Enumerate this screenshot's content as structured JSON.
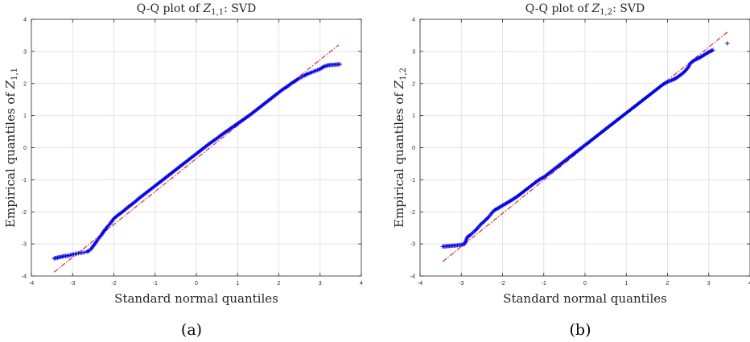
{
  "chart_data": [
    {
      "type": "scatter",
      "title": "Q-Q plot of Z1,1: SVD",
      "title_parts": {
        "prefix": "Q-Q plot of ",
        "var": "Z",
        "sub": "1,1",
        "suffix": ": SVD"
      },
      "xlabel": "Standard normal quantiles",
      "ylabel": "Empirical quantiles of Z1,1",
      "ylabel_parts": {
        "prefix": "Empirical quantiles of ",
        "var": "Z",
        "sub": "1,1"
      },
      "caption": "(a)",
      "xlim": [
        -4,
        4
      ],
      "ylim": [
        -4,
        4
      ],
      "xticks": [
        "-4",
        "-3",
        "-2",
        "-1",
        "0",
        "1",
        "2",
        "3",
        "4"
      ],
      "yticks": [
        "-4",
        "-3",
        "-2",
        "-1",
        "0",
        "1",
        "2",
        "3",
        "4"
      ],
      "grid": true,
      "marker": "+",
      "marker_color": "#0000ff",
      "reference_line": {
        "style": "dash-dot",
        "color": "#ff0000",
        "x": [
          -3.45,
          3.45
        ],
        "y": [
          -3.88,
          3.2
        ]
      },
      "points": [
        [
          -3.45,
          -3.45
        ],
        [
          -3.2,
          -3.38
        ],
        [
          -3.08,
          -3.36
        ],
        [
          -2.98,
          -3.32
        ],
        [
          -2.9,
          -3.3
        ],
        [
          -2.82,
          -3.28
        ],
        [
          -2.75,
          -3.27
        ],
        [
          -2.7,
          -3.26
        ],
        [
          -2.65,
          -3.24
        ],
        [
          -2.6,
          -3.21
        ],
        [
          -2.56,
          -3.17
        ],
        [
          -2.52,
          -3.1
        ],
        [
          -2.48,
          -3.03
        ],
        [
          -2.44,
          -2.96
        ],
        [
          -2.4,
          -2.88
        ],
        [
          -2.35,
          -2.8
        ],
        [
          -2.3,
          -2.72
        ],
        [
          -2.25,
          -2.62
        ],
        [
          -2.2,
          -2.53
        ],
        [
          -2.15,
          -2.46
        ],
        [
          -2.1,
          -2.38
        ],
        [
          -2.05,
          -2.3
        ],
        [
          -2.0,
          -2.21
        ],
        [
          -1.9,
          -2.1
        ],
        [
          -1.8,
          -2.01
        ],
        [
          -1.7,
          -1.9
        ],
        [
          -1.6,
          -1.8
        ],
        [
          -1.5,
          -1.7
        ],
        [
          -1.4,
          -1.59
        ],
        [
          -1.3,
          -1.49
        ],
        [
          -1.2,
          -1.39
        ],
        [
          -1.1,
          -1.29
        ],
        [
          -1.0,
          -1.19
        ],
        [
          -0.9,
          -1.09
        ],
        [
          -0.8,
          -0.99
        ],
        [
          -0.7,
          -0.89
        ],
        [
          -0.6,
          -0.79
        ],
        [
          -0.5,
          -0.69
        ],
        [
          -0.4,
          -0.59
        ],
        [
          -0.3,
          -0.49
        ],
        [
          -0.2,
          -0.39
        ],
        [
          -0.1,
          -0.29
        ],
        [
          0.0,
          -0.19
        ],
        [
          0.1,
          -0.09
        ],
        [
          0.2,
          0.01
        ],
        [
          0.3,
          0.11
        ],
        [
          0.4,
          0.2
        ],
        [
          0.5,
          0.29
        ],
        [
          0.6,
          0.39
        ],
        [
          0.7,
          0.48
        ],
        [
          0.8,
          0.57
        ],
        [
          0.9,
          0.66
        ],
        [
          1.0,
          0.75
        ],
        [
          1.1,
          0.84
        ],
        [
          1.2,
          0.93
        ],
        [
          1.3,
          1.02
        ],
        [
          1.4,
          1.12
        ],
        [
          1.5,
          1.22
        ],
        [
          1.6,
          1.32
        ],
        [
          1.7,
          1.42
        ],
        [
          1.8,
          1.52
        ],
        [
          1.9,
          1.62
        ],
        [
          2.0,
          1.72
        ],
        [
          2.1,
          1.82
        ],
        [
          2.2,
          1.9
        ],
        [
          2.3,
          2.0
        ],
        [
          2.4,
          2.08
        ],
        [
          2.48,
          2.15
        ],
        [
          2.55,
          2.2
        ],
        [
          2.62,
          2.25
        ],
        [
          2.7,
          2.3
        ],
        [
          2.8,
          2.35
        ],
        [
          2.9,
          2.4
        ],
        [
          3.0,
          2.45
        ],
        [
          3.08,
          2.52
        ],
        [
          3.2,
          2.57
        ],
        [
          3.48,
          2.6
        ]
      ]
    },
    {
      "type": "scatter",
      "title": "Q-Q plot of Z1,2: SVD",
      "title_parts": {
        "prefix": "Q-Q plot of ",
        "var": "Z",
        "sub": "1,2",
        "suffix": ": SVD"
      },
      "xlabel": "Standard normal quantiles",
      "ylabel": "Empirical quantiles of Z1,2",
      "ylabel_parts": {
        "prefix": "Empirical quantiles of ",
        "var": "Z",
        "sub": "1,2"
      },
      "caption": "(b)",
      "xlim": [
        -4,
        4
      ],
      "ylim": [
        -4,
        4
      ],
      "xticks": [
        "-4",
        "-3",
        "-2",
        "-1",
        "0",
        "1",
        "2",
        "3",
        "4"
      ],
      "yticks": [
        "-4",
        "-3",
        "-2",
        "-1",
        "0",
        "1",
        "2",
        "3",
        "4"
      ],
      "grid": true,
      "marker": "+",
      "marker_color": "#0000ff",
      "reference_line": {
        "style": "dash-dot",
        "color": "#ff0000",
        "x": [
          -3.45,
          3.45
        ],
        "y": [
          -3.55,
          3.6
        ]
      },
      "points": [
        [
          -3.45,
          -3.08
        ],
        [
          -3.15,
          -3.05
        ],
        [
          -3.0,
          -3.03
        ],
        [
          -2.92,
          -3.0
        ],
        [
          -2.85,
          -2.78
        ],
        [
          -2.78,
          -2.72
        ],
        [
          -2.72,
          -2.65
        ],
        [
          -2.66,
          -2.58
        ],
        [
          -2.6,
          -2.5
        ],
        [
          -2.55,
          -2.42
        ],
        [
          -2.5,
          -2.36
        ],
        [
          -2.45,
          -2.3
        ],
        [
          -2.4,
          -2.24
        ],
        [
          -2.35,
          -2.18
        ],
        [
          -2.3,
          -2.1
        ],
        [
          -2.25,
          -2.02
        ],
        [
          -2.2,
          -1.95
        ],
        [
          -2.1,
          -1.88
        ],
        [
          -2.0,
          -1.8
        ],
        [
          -1.9,
          -1.73
        ],
        [
          -1.8,
          -1.65
        ],
        [
          -1.7,
          -1.57
        ],
        [
          -1.6,
          -1.48
        ],
        [
          -1.5,
          -1.38
        ],
        [
          -1.4,
          -1.28
        ],
        [
          -1.3,
          -1.18
        ],
        [
          -1.2,
          -1.08
        ],
        [
          -1.1,
          -0.99
        ],
        [
          -1.0,
          -0.92
        ],
        [
          -0.9,
          -0.82
        ],
        [
          -0.8,
          -0.72
        ],
        [
          -0.7,
          -0.62
        ],
        [
          -0.6,
          -0.52
        ],
        [
          -0.5,
          -0.42
        ],
        [
          -0.4,
          -0.32
        ],
        [
          -0.3,
          -0.22
        ],
        [
          -0.2,
          -0.12
        ],
        [
          -0.1,
          -0.02
        ],
        [
          0.0,
          0.08
        ],
        [
          0.1,
          0.18
        ],
        [
          0.2,
          0.28
        ],
        [
          0.3,
          0.38
        ],
        [
          0.4,
          0.48
        ],
        [
          0.5,
          0.58
        ],
        [
          0.6,
          0.68
        ],
        [
          0.7,
          0.78
        ],
        [
          0.8,
          0.88
        ],
        [
          0.9,
          0.98
        ],
        [
          1.0,
          1.08
        ],
        [
          1.1,
          1.18
        ],
        [
          1.2,
          1.28
        ],
        [
          1.3,
          1.38
        ],
        [
          1.4,
          1.48
        ],
        [
          1.5,
          1.58
        ],
        [
          1.6,
          1.68
        ],
        [
          1.7,
          1.78
        ],
        [
          1.8,
          1.88
        ],
        [
          1.9,
          1.98
        ],
        [
          2.0,
          2.05
        ],
        [
          2.1,
          2.1
        ],
        [
          2.2,
          2.16
        ],
        [
          2.3,
          2.25
        ],
        [
          2.4,
          2.35
        ],
        [
          2.5,
          2.5
        ],
        [
          2.55,
          2.62
        ],
        [
          2.62,
          2.7
        ],
        [
          2.7,
          2.76
        ],
        [
          2.8,
          2.82
        ],
        [
          2.9,
          2.9
        ],
        [
          3.0,
          2.98
        ],
        [
          3.1,
          3.04
        ],
        [
          3.45,
          3.25
        ]
      ]
    }
  ]
}
